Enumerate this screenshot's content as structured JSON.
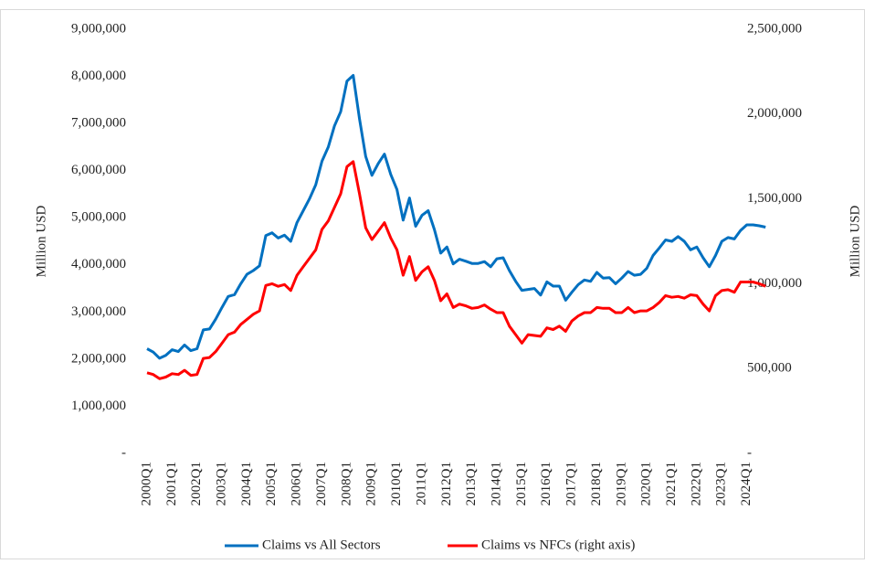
{
  "chart_data": {
    "type": "line",
    "y_label": "Million USD",
    "y2_label": "Million USD",
    "categories": [
      "2000Q1",
      null,
      null,
      null,
      "2001Q1",
      null,
      null,
      null,
      "2002Q1",
      null,
      null,
      null,
      "2003Q1",
      null,
      null,
      null,
      "2004Q1",
      null,
      null,
      null,
      "2005Q1",
      null,
      null,
      null,
      "2006Q1",
      null,
      null,
      null,
      "2007Q1",
      null,
      null,
      null,
      "2008Q1",
      null,
      null,
      null,
      "2009Q1",
      null,
      null,
      null,
      "2010Q1",
      null,
      null,
      null,
      "2011Q1",
      null,
      null,
      null,
      "2012Q1",
      null,
      null,
      null,
      "2013Q1",
      null,
      null,
      null,
      "2014Q1",
      null,
      null,
      null,
      "2015Q1",
      null,
      null,
      null,
      "2016Q1",
      null,
      null,
      null,
      "2017Q1",
      null,
      null,
      null,
      "2018Q1",
      null,
      null,
      null,
      "2019Q1",
      null,
      null,
      null,
      "2020Q1",
      null,
      null,
      null,
      "2021Q1",
      null,
      null,
      null,
      "2022Q1",
      null,
      null,
      null,
      "2023Q1",
      null,
      null,
      null,
      "2024Q1",
      null,
      null,
      null
    ],
    "series": [
      {
        "name": "Claims vs All Sectors",
        "color": "#0070c0",
        "values": [
          2220000,
          2150000,
          2020000,
          2080000,
          2200000,
          2160000,
          2300000,
          2180000,
          2220000,
          2620000,
          2640000,
          2850000,
          3100000,
          3330000,
          3370000,
          3600000,
          3800000,
          3880000,
          3980000,
          4620000,
          4680000,
          4570000,
          4630000,
          4500000,
          4900000,
          5150000,
          5400000,
          5700000,
          6200000,
          6500000,
          6950000,
          7250000,
          7900000,
          8020000,
          7100000,
          6300000,
          5900000,
          6150000,
          6350000,
          5920000,
          5600000,
          4950000,
          5420000,
          4820000,
          5050000,
          5150000,
          4750000,
          4250000,
          4380000,
          4020000,
          4120000,
          4080000,
          4030000,
          4030000,
          4070000,
          3960000,
          4130000,
          4150000,
          3880000,
          3650000,
          3460000,
          3480000,
          3500000,
          3360000,
          3640000,
          3550000,
          3550000,
          3250000,
          3420000,
          3580000,
          3680000,
          3650000,
          3840000,
          3720000,
          3730000,
          3600000,
          3720000,
          3860000,
          3780000,
          3800000,
          3930000,
          4200000,
          4360000,
          4530000,
          4500000,
          4600000,
          4500000,
          4320000,
          4380000,
          4150000,
          3960000,
          4200000,
          4500000,
          4580000,
          4550000,
          4730000,
          4850000,
          4850000,
          4830000,
          4800000
        ]
      },
      {
        "name": "Claims vs NFCs (right axis)",
        "color": "#ff0000",
        "axis": "y2",
        "values": [
          475000,
          465000,
          440000,
          450000,
          470000,
          465000,
          490000,
          460000,
          465000,
          560000,
          565000,
          600000,
          650000,
          700000,
          715000,
          760000,
          790000,
          820000,
          840000,
          990000,
          1000000,
          985000,
          995000,
          960000,
          1050000,
          1100000,
          1150000,
          1200000,
          1320000,
          1370000,
          1450000,
          1530000,
          1690000,
          1720000,
          1530000,
          1330000,
          1260000,
          1310000,
          1360000,
          1270000,
          1200000,
          1050000,
          1160000,
          1020000,
          1070000,
          1100000,
          1020000,
          900000,
          940000,
          860000,
          880000,
          870000,
          855000,
          860000,
          875000,
          850000,
          830000,
          830000,
          750000,
          700000,
          650000,
          700000,
          695000,
          690000,
          740000,
          730000,
          750000,
          720000,
          780000,
          810000,
          830000,
          830000,
          860000,
          855000,
          855000,
          830000,
          830000,
          860000,
          830000,
          840000,
          840000,
          860000,
          890000,
          930000,
          920000,
          925000,
          915000,
          935000,
          930000,
          880000,
          840000,
          930000,
          960000,
          965000,
          950000,
          1010000,
          1010000,
          1010000,
          1000000,
          985000
        ]
      }
    ],
    "ylim": [
      0,
      9000000
    ],
    "yticks": [
      {
        "value": 0,
        "label": "-"
      },
      {
        "value": 1000000,
        "label": "1,000,000"
      },
      {
        "value": 2000000,
        "label": "2,000,000"
      },
      {
        "value": 3000000,
        "label": "3,000,000"
      },
      {
        "value": 4000000,
        "label": "4,000,000"
      },
      {
        "value": 5000000,
        "label": "5,000,000"
      },
      {
        "value": 6000000,
        "label": "6,000,000"
      },
      {
        "value": 7000000,
        "label": "7,000,000"
      },
      {
        "value": 8000000,
        "label": "8,000,000"
      },
      {
        "value": 9000000,
        "label": "9,000,000"
      }
    ],
    "y2lim": [
      0,
      2500000
    ],
    "y2ticks": [
      {
        "value": 0,
        "label": "-"
      },
      {
        "value": 500000,
        "label": "500,000"
      },
      {
        "value": 1000000,
        "label": "1,000,000"
      },
      {
        "value": 1500000,
        "label": "1,500,000"
      },
      {
        "value": 2000000,
        "label": "2,000,000"
      },
      {
        "value": 2500000,
        "label": "2,500,000"
      }
    ],
    "grid": false,
    "legend": "bottom"
  }
}
